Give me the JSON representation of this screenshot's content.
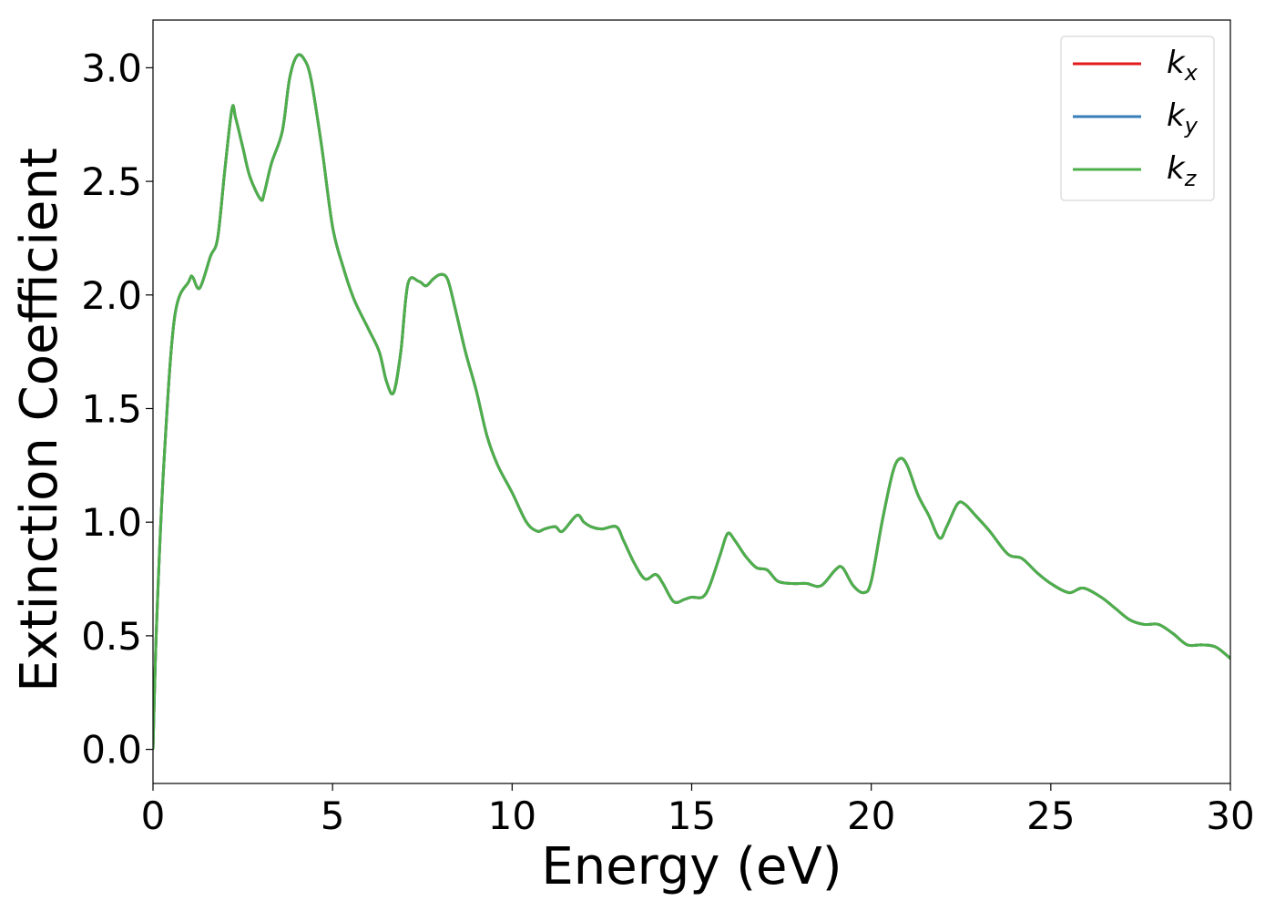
{
  "chart_data": {
    "type": "line",
    "title": "",
    "xlabel": "Energy (eV)",
    "ylabel": "Extinction Coefficient",
    "xlim": [
      0,
      30
    ],
    "ylim": [
      -0.15,
      3.21
    ],
    "xticks": [
      0,
      5,
      10,
      15,
      20,
      25,
      30
    ],
    "xtick_labels": [
      "0",
      "5",
      "10",
      "15",
      "20",
      "25",
      "30"
    ],
    "yticks": [
      0.0,
      0.5,
      1.0,
      1.5,
      2.0,
      2.5,
      3.0
    ],
    "ytick_labels": [
      "0.0",
      "0.5",
      "1.0",
      "1.5",
      "2.0",
      "2.5",
      "3.0"
    ],
    "grid": false,
    "legend_position": "top-right",
    "x": [
      0,
      0.1,
      0.3,
      0.6,
      1.0,
      1.1,
      1.3,
      1.6,
      1.8,
      2.0,
      2.2,
      2.3,
      2.5,
      2.7,
      3.0,
      3.1,
      3.3,
      3.6,
      3.8,
      4.0,
      4.2,
      4.4,
      4.7,
      5.0,
      5.3,
      5.6,
      6.0,
      6.3,
      6.5,
      6.7,
      6.9,
      7.1,
      7.4,
      7.6,
      7.8,
      8.0,
      8.2,
      8.4,
      8.7,
      9.0,
      9.3,
      9.6,
      10.0,
      10.4,
      10.7,
      10.9,
      11.2,
      11.4,
      11.8,
      12.0,
      12.2,
      12.5,
      12.9,
      13.1,
      13.4,
      13.7,
      14.0,
      14.2,
      14.5,
      14.8,
      15.0,
      15.3,
      15.5,
      15.8,
      16.0,
      16.2,
      16.5,
      16.8,
      17.1,
      17.4,
      17.8,
      18.2,
      18.6,
      19.0,
      19.2,
      19.5,
      19.8,
      20.0,
      20.3,
      20.6,
      20.8,
      21.0,
      21.3,
      21.6,
      21.9,
      22.1,
      22.4,
      22.6,
      22.9,
      23.3,
      23.8,
      24.2,
      24.6,
      25.0,
      25.5,
      25.9,
      26.4,
      26.8,
      27.2,
      27.6,
      28.0,
      28.4,
      28.8,
      29.2,
      29.6,
      30.0
    ],
    "series": [
      {
        "name": "k_x",
        "color": "#e41a1c",
        "values": [
          0.0,
          0.55,
          1.25,
          1.9,
          2.06,
          2.08,
          2.03,
          2.17,
          2.25,
          2.55,
          2.82,
          2.78,
          2.65,
          2.52,
          2.42,
          2.45,
          2.58,
          2.72,
          2.95,
          3.05,
          3.04,
          2.95,
          2.65,
          2.3,
          2.12,
          1.98,
          1.85,
          1.75,
          1.62,
          1.57,
          1.75,
          2.05,
          2.06,
          2.04,
          2.07,
          2.09,
          2.07,
          1.95,
          1.75,
          1.58,
          1.38,
          1.25,
          1.13,
          1.0,
          0.96,
          0.97,
          0.98,
          0.96,
          1.03,
          1.0,
          0.98,
          0.97,
          0.98,
          0.92,
          0.82,
          0.75,
          0.77,
          0.73,
          0.65,
          0.66,
          0.67,
          0.67,
          0.72,
          0.86,
          0.95,
          0.92,
          0.85,
          0.8,
          0.79,
          0.74,
          0.73,
          0.73,
          0.72,
          0.79,
          0.8,
          0.72,
          0.69,
          0.74,
          1.0,
          1.22,
          1.28,
          1.25,
          1.12,
          1.03,
          0.93,
          0.98,
          1.08,
          1.08,
          1.03,
          0.96,
          0.86,
          0.84,
          0.78,
          0.73,
          0.69,
          0.71,
          0.67,
          0.62,
          0.57,
          0.55,
          0.55,
          0.51,
          0.46,
          0.46,
          0.45,
          0.4
        ]
      },
      {
        "name": "k_y",
        "color": "#377eb8",
        "values": [
          0.0,
          0.55,
          1.25,
          1.9,
          2.06,
          2.08,
          2.03,
          2.17,
          2.25,
          2.55,
          2.82,
          2.78,
          2.65,
          2.52,
          2.42,
          2.45,
          2.58,
          2.72,
          2.95,
          3.05,
          3.04,
          2.95,
          2.65,
          2.3,
          2.12,
          1.98,
          1.85,
          1.75,
          1.62,
          1.57,
          1.75,
          2.05,
          2.06,
          2.04,
          2.07,
          2.09,
          2.07,
          1.95,
          1.75,
          1.58,
          1.38,
          1.25,
          1.13,
          1.0,
          0.96,
          0.97,
          0.98,
          0.96,
          1.03,
          1.0,
          0.98,
          0.97,
          0.98,
          0.92,
          0.82,
          0.75,
          0.77,
          0.73,
          0.65,
          0.66,
          0.67,
          0.67,
          0.72,
          0.86,
          0.95,
          0.92,
          0.85,
          0.8,
          0.79,
          0.74,
          0.73,
          0.73,
          0.72,
          0.79,
          0.8,
          0.72,
          0.69,
          0.74,
          1.0,
          1.22,
          1.28,
          1.25,
          1.12,
          1.03,
          0.93,
          0.98,
          1.08,
          1.08,
          1.03,
          0.96,
          0.86,
          0.84,
          0.78,
          0.73,
          0.69,
          0.71,
          0.67,
          0.62,
          0.57,
          0.55,
          0.55,
          0.51,
          0.46,
          0.46,
          0.45,
          0.4
        ]
      },
      {
        "name": "k_z",
        "color": "#4daf4a",
        "values": [
          0.0,
          0.55,
          1.25,
          1.9,
          2.06,
          2.08,
          2.03,
          2.17,
          2.25,
          2.55,
          2.82,
          2.78,
          2.65,
          2.52,
          2.42,
          2.45,
          2.58,
          2.72,
          2.95,
          3.05,
          3.04,
          2.95,
          2.65,
          2.3,
          2.12,
          1.98,
          1.85,
          1.75,
          1.62,
          1.57,
          1.75,
          2.05,
          2.06,
          2.04,
          2.07,
          2.09,
          2.07,
          1.95,
          1.75,
          1.58,
          1.38,
          1.25,
          1.13,
          1.0,
          0.96,
          0.97,
          0.98,
          0.96,
          1.03,
          1.0,
          0.98,
          0.97,
          0.98,
          0.92,
          0.82,
          0.75,
          0.77,
          0.73,
          0.65,
          0.66,
          0.67,
          0.67,
          0.72,
          0.86,
          0.95,
          0.92,
          0.85,
          0.8,
          0.79,
          0.74,
          0.73,
          0.73,
          0.72,
          0.79,
          0.8,
          0.72,
          0.69,
          0.74,
          1.0,
          1.22,
          1.28,
          1.25,
          1.12,
          1.03,
          0.93,
          0.98,
          1.08,
          1.08,
          1.03,
          0.96,
          0.86,
          0.84,
          0.78,
          0.73,
          0.69,
          0.71,
          0.67,
          0.62,
          0.57,
          0.55,
          0.55,
          0.51,
          0.46,
          0.46,
          0.45,
          0.4
        ]
      }
    ],
    "legend": [
      {
        "label": "k",
        "sub": "x",
        "color": "#e41a1c"
      },
      {
        "label": "k",
        "sub": "y",
        "color": "#377eb8"
      },
      {
        "label": "k",
        "sub": "z",
        "color": "#4daf4a"
      }
    ]
  }
}
